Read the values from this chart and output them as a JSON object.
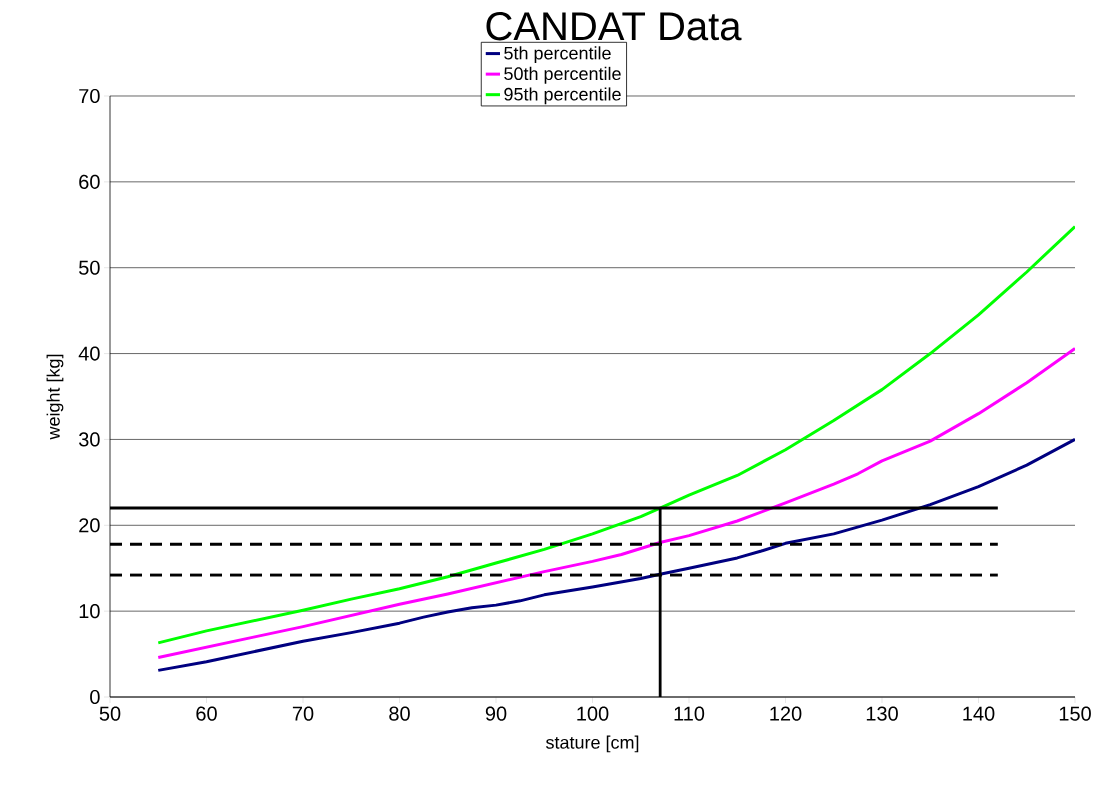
{
  "chart_data": {
    "type": "line",
    "title": "CANDAT Data",
    "xlabel": "stature [cm]",
    "ylabel": "weight [kg]",
    "xlim": [
      50,
      150
    ],
    "ylim": [
      0,
      70
    ],
    "xticks": [
      50,
      60,
      70,
      80,
      90,
      100,
      110,
      120,
      130,
      140,
      150
    ],
    "yticks": [
      0,
      10,
      20,
      30,
      40,
      50,
      60,
      70
    ],
    "grid": "y",
    "legend": "top",
    "marker": "none",
    "series": [
      {
        "name": "5th percentile",
        "color": "#000080",
        "x": [
          55,
          60,
          65,
          70,
          75,
          80,
          82.5,
          85,
          87.5,
          90,
          92.5,
          95,
          100,
          105,
          107,
          110,
          115,
          117.5,
          120,
          125,
          130,
          135,
          140,
          145,
          150
        ],
        "values": [
          3.1,
          4.1,
          5.3,
          6.5,
          7.5,
          8.6,
          9.3,
          9.9,
          10.4,
          10.7,
          11.2,
          11.9,
          12.8,
          13.8,
          14.3,
          15.0,
          16.2,
          17.0,
          17.9,
          19.0,
          20.6,
          22.4,
          24.5,
          27.0,
          30.0
        ]
      },
      {
        "name": "50th percentile",
        "color": "#ff00ff",
        "x": [
          55,
          60,
          65,
          70,
          75,
          80,
          85,
          90,
          95,
          100,
          103,
          107,
          110,
          115,
          120,
          125,
          127.5,
          130,
          135,
          140,
          145,
          150
        ],
        "values": [
          4.6,
          5.8,
          7.0,
          8.2,
          9.5,
          10.8,
          12.0,
          13.3,
          14.6,
          15.8,
          16.6,
          18.0,
          18.8,
          20.5,
          22.6,
          24.8,
          26.0,
          27.5,
          29.8,
          33.0,
          36.6,
          40.6
        ]
      },
      {
        "name": "95th percentile",
        "color": "#00ff00",
        "x": [
          55,
          60,
          65,
          70,
          75,
          80,
          85,
          90,
          95,
          100,
          105,
          107,
          110,
          115,
          120,
          125,
          130,
          135,
          140,
          145,
          150
        ],
        "values": [
          6.3,
          7.7,
          8.9,
          10.1,
          11.4,
          12.6,
          14.0,
          15.6,
          17.2,
          19.0,
          21.0,
          22.0,
          23.5,
          25.8,
          28.8,
          32.2,
          35.8,
          40.0,
          44.5,
          49.5,
          54.8
        ]
      },
      {
        "type": "line",
        "color": "#000000",
        "line_style": "solid",
        "x": [
          50,
          142
        ],
        "values": [
          22,
          22
        ]
      },
      {
        "type": "line",
        "color": "#000000",
        "line_style": "dashed",
        "x": [
          50,
          142
        ],
        "values": [
          17.8,
          17.8
        ]
      },
      {
        "type": "line",
        "color": "#000000",
        "line_style": "dashed",
        "x": [
          50,
          142
        ],
        "values": [
          14.2,
          14.2
        ]
      },
      {
        "type": "line",
        "color": "#000000",
        "line_style": "solid",
        "x": [
          107,
          107
        ],
        "values": [
          0,
          22
        ]
      }
    ]
  }
}
